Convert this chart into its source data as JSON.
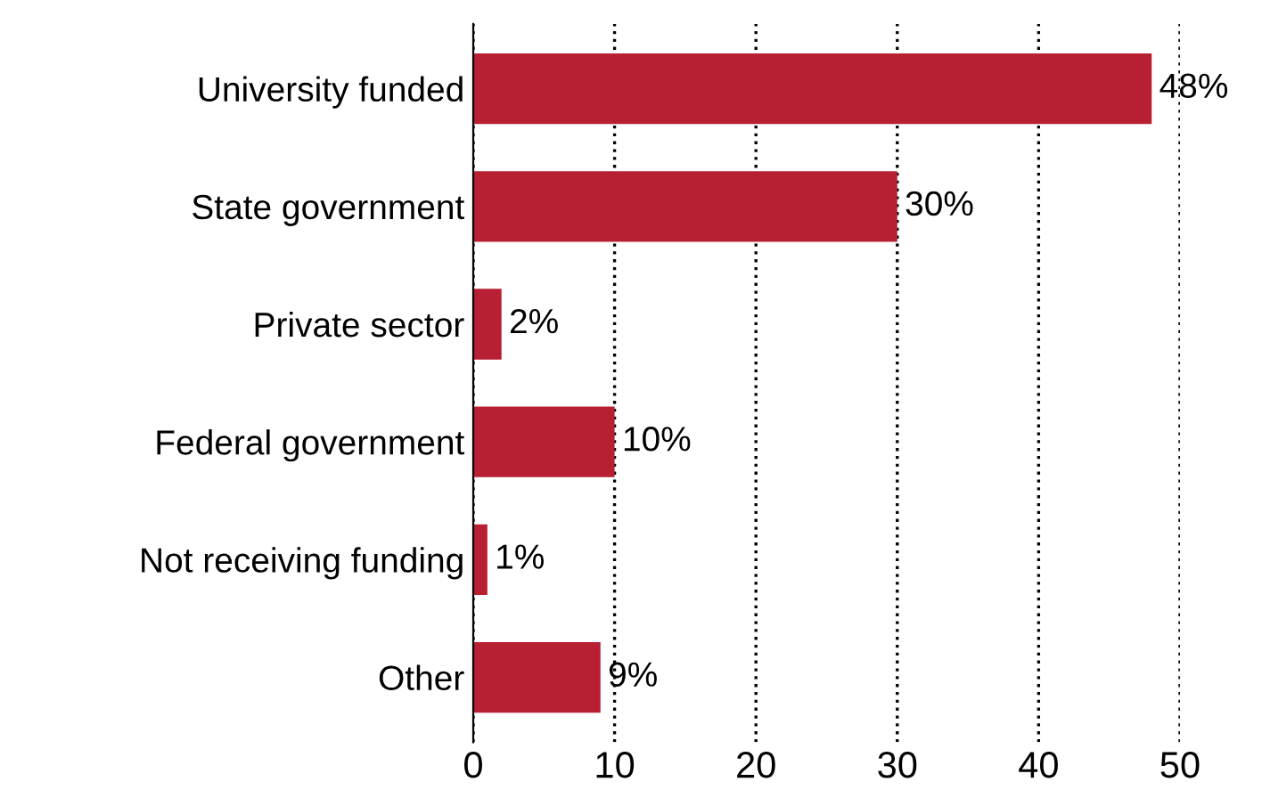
{
  "chart_data": {
    "type": "bar",
    "orientation": "horizontal",
    "categories": [
      "University funded",
      "State government",
      "Private sector",
      "Federal government",
      "Not receiving funding",
      "Other"
    ],
    "values": [
      48,
      30,
      2,
      10,
      1,
      9
    ],
    "value_labels": [
      "48%",
      "30%",
      "2%",
      "10%",
      "1%",
      "9%"
    ],
    "color": "#b71f33",
    "xlim": [
      0,
      50
    ],
    "xticks": [
      0,
      10,
      20,
      30,
      40,
      50
    ],
    "grid": "x",
    "legend": false
  }
}
